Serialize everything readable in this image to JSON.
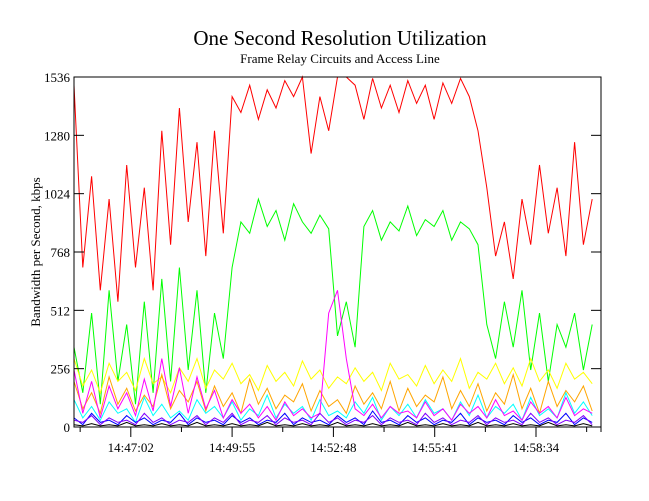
{
  "chart_data": {
    "type": "line",
    "title": "One Second Resolution Utilization",
    "subtitle": "Frame Relay Circuits and Access Line",
    "xlabel": "",
    "ylabel": "Bandwidth per Second, kbps",
    "ylim": [
      0,
      1536
    ],
    "xlim": [
      "14:45:25",
      "15:00:25"
    ],
    "y_ticks": [
      "0",
      "256",
      "512",
      "768",
      "1024",
      "1280",
      "1536"
    ],
    "x_ticks": [
      "14:47:02",
      "14:49:55",
      "14:52:48",
      "14:55:41",
      "14:58:34"
    ],
    "grid": false,
    "legend": "none",
    "x": [
      "14:45:25",
      "14:45:40",
      "14:45:55",
      "14:46:10",
      "14:46:25",
      "14:46:40",
      "14:46:55",
      "14:47:10",
      "14:47:25",
      "14:47:40",
      "14:47:55",
      "14:48:10",
      "14:48:25",
      "14:48:40",
      "14:48:55",
      "14:49:10",
      "14:49:25",
      "14:49:40",
      "14:49:55",
      "14:50:10",
      "14:50:25",
      "14:50:40",
      "14:50:55",
      "14:51:10",
      "14:51:25",
      "14:51:40",
      "14:51:55",
      "14:52:10",
      "14:52:25",
      "14:52:40",
      "14:52:55",
      "14:53:10",
      "14:53:25",
      "14:53:40",
      "14:53:55",
      "14:54:10",
      "14:54:25",
      "14:54:40",
      "14:54:55",
      "14:55:10",
      "14:55:25",
      "14:55:40",
      "14:55:55",
      "14:56:10",
      "14:56:25",
      "14:56:40",
      "14:56:55",
      "14:57:10",
      "14:57:25",
      "14:57:40",
      "14:57:55",
      "14:58:10",
      "14:58:25",
      "14:58:40",
      "14:58:55",
      "14:59:10",
      "14:59:25",
      "14:59:40",
      "14:59:55",
      "15:00:10"
    ],
    "series": [
      {
        "color": "#ff0000",
        "values": [
          1500,
          700,
          1100,
          600,
          1000,
          550,
          1150,
          700,
          1050,
          600,
          1300,
          800,
          1400,
          900,
          1250,
          750,
          1300,
          850,
          1450,
          1380,
          1500,
          1350,
          1480,
          1400,
          1520,
          1450,
          1536,
          1200,
          1450,
          1300,
          1536,
          1536,
          1500,
          1350,
          1530,
          1400,
          1500,
          1380,
          1520,
          1420,
          1500,
          1350,
          1510,
          1420,
          1530,
          1450,
          1300,
          1050,
          750,
          900,
          650,
          1000,
          800,
          1150,
          850,
          1050,
          750,
          1250,
          800,
          1000
        ]
      },
      {
        "color": "#00ff00",
        "values": [
          350,
          150,
          500,
          100,
          600,
          200,
          450,
          100,
          550,
          150,
          650,
          200,
          700,
          250,
          600,
          150,
          500,
          300,
          700,
          900,
          850,
          1000,
          880,
          950,
          820,
          980,
          900,
          850,
          930,
          870,
          400,
          550,
          350,
          880,
          950,
          820,
          900,
          860,
          970,
          840,
          910,
          880,
          950,
          820,
          900,
          870,
          800,
          450,
          300,
          550,
          350,
          600,
          250,
          500,
          200,
          450,
          350,
          500,
          250,
          450
        ]
      },
      {
        "color": "#ffff00",
        "values": [
          300,
          180,
          250,
          150,
          280,
          200,
          240,
          160,
          300,
          190,
          220,
          150,
          260,
          200,
          300,
          170,
          250,
          210,
          280,
          190,
          230,
          160,
          270,
          200,
          240,
          180,
          290,
          210,
          250,
          170,
          220,
          190,
          260,
          200,
          240,
          160,
          280,
          210,
          230,
          180,
          270,
          190,
          250,
          200,
          300,
          170,
          240,
          210,
          280,
          190,
          260,
          180,
          300,
          200,
          250,
          170,
          280,
          210,
          240,
          190
        ]
      },
      {
        "color": "#ffa500",
        "values": [
          200,
          80,
          150,
          60,
          220,
          100,
          170,
          70,
          140,
          90,
          230,
          80,
          160,
          110,
          200,
          70,
          180,
          90,
          150,
          60,
          210,
          100,
          170,
          80,
          140,
          110,
          190,
          70,
          160,
          90,
          120,
          60,
          180,
          100,
          150,
          80,
          200,
          70,
          170,
          90,
          140,
          110,
          220,
          80,
          160,
          90,
          190,
          70,
          150,
          100,
          230,
          80,
          170,
          60,
          200,
          90,
          160,
          110,
          180,
          70
        ]
      },
      {
        "color": "#00ffff",
        "values": [
          120,
          40,
          90,
          30,
          110,
          60,
          80,
          20,
          130,
          50,
          100,
          40,
          70,
          30,
          120,
          60,
          90,
          40,
          110,
          30,
          80,
          50,
          140,
          40,
          100,
          60,
          90,
          30,
          120,
          50,
          70,
          40,
          110,
          60,
          130,
          30,
          90,
          50,
          100,
          40,
          120,
          60,
          80,
          30,
          110,
          50,
          140,
          40,
          90,
          60,
          100,
          30,
          130,
          50,
          80,
          40,
          150,
          60,
          110,
          50
        ]
      },
      {
        "color": "#ff00ff",
        "values": [
          250,
          60,
          200,
          40,
          180,
          80,
          150,
          50,
          210,
          70,
          300,
          90,
          260,
          60,
          220,
          80,
          160,
          40,
          120,
          60,
          100,
          40,
          90,
          30,
          110,
          50,
          80,
          40,
          60,
          500,
          600,
          300,
          80,
          50,
          100,
          40,
          90,
          60,
          70,
          40,
          110,
          50,
          80,
          30,
          100,
          60,
          90,
          40,
          120,
          50,
          70,
          30,
          110,
          60,
          90,
          40,
          130,
          50,
          80,
          60
        ]
      },
      {
        "color": "#0000ff",
        "values": [
          40,
          10,
          60,
          20,
          30,
          10,
          50,
          20,
          40,
          10,
          30,
          20,
          60,
          10,
          40,
          20,
          30,
          10,
          50,
          20,
          40,
          10,
          30,
          20,
          60,
          10,
          40,
          20,
          30,
          10,
          50,
          20,
          40,
          10,
          70,
          20,
          30,
          10,
          50,
          20,
          40,
          10,
          30,
          20,
          60,
          10,
          40,
          20,
          30,
          10,
          50,
          20,
          40,
          10,
          30,
          20,
          60,
          10,
          40,
          20
        ]
      },
      {
        "color": "#8000ff",
        "values": [
          30,
          20,
          50,
          10,
          40,
          20,
          30,
          10,
          60,
          20,
          40,
          10,
          30,
          20,
          50,
          10,
          40,
          20,
          60,
          10,
          30,
          20,
          50,
          10,
          40,
          20,
          30,
          10,
          60,
          20,
          40,
          10,
          30,
          20,
          50,
          10,
          40,
          20,
          30,
          10,
          60,
          20,
          40,
          10,
          30,
          20,
          50,
          10,
          40,
          20,
          30,
          10,
          60,
          20,
          40,
          10,
          30,
          20,
          50,
          10
        ]
      },
      {
        "color": "#000000",
        "values": [
          10,
          5,
          15,
          5,
          10,
          5,
          20,
          5,
          10,
          5,
          15,
          5,
          10,
          5,
          20,
          5,
          10,
          5,
          15,
          5,
          10,
          5,
          20,
          5,
          10,
          5,
          15,
          5,
          10,
          5,
          20,
          5,
          10,
          5,
          15,
          5,
          10,
          5,
          20,
          5,
          10,
          5,
          15,
          5,
          10,
          5,
          20,
          5,
          10,
          5,
          15,
          5,
          10,
          5,
          20,
          5,
          10,
          5,
          15,
          5
        ]
      }
    ]
  }
}
